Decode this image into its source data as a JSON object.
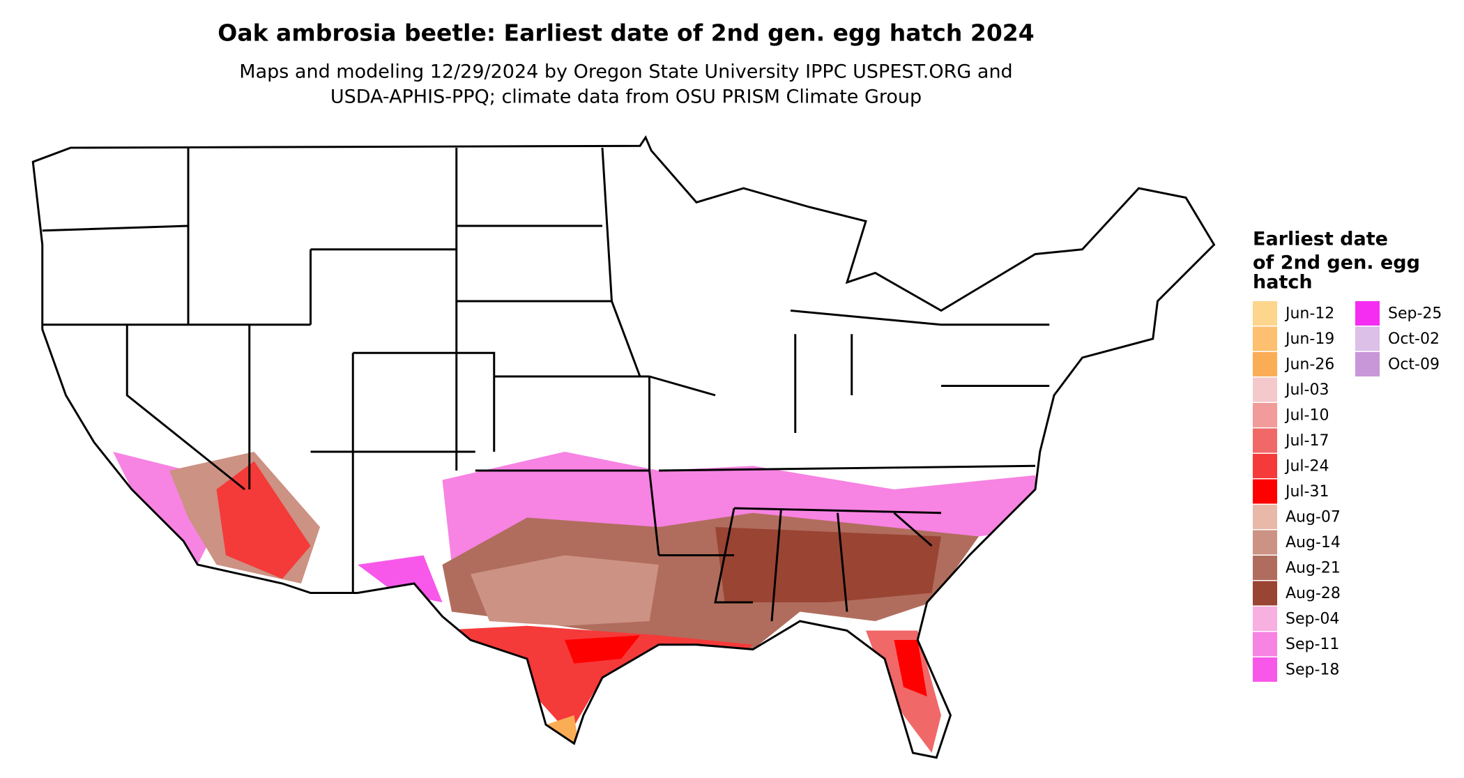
{
  "title": "Oak ambrosia beetle: Earliest date of 2nd gen. egg hatch 2024",
  "subtitle": [
    "Maps and modeling 12/29/2024 by Oregon State University IPPC USPEST.ORG and",
    "USDA-APHIS-PPQ; climate data from OSU PRISM Climate Group"
  ],
  "legend": {
    "title": [
      "Earliest date",
      "of 2nd gen. egg",
      "hatch"
    ],
    "items": [
      {
        "label": "Jun-12",
        "color": "#fdd58c"
      },
      {
        "label": "Jun-19",
        "color": "#fdc070"
      },
      {
        "label": "Jun-26",
        "color": "#fbad55"
      },
      {
        "label": "Jul-03",
        "color": "#f4c9cb"
      },
      {
        "label": "Jul-10",
        "color": "#f19b9a"
      },
      {
        "label": "Jul-17",
        "color": "#f06868"
      },
      {
        "label": "Jul-24",
        "color": "#f53a3a"
      },
      {
        "label": "Jul-31",
        "color": "#ff0000"
      },
      {
        "label": "Aug-07",
        "color": "#e8b8a8"
      },
      {
        "label": "Aug-14",
        "color": "#cc9283"
      },
      {
        "label": "Aug-21",
        "color": "#b06d5d"
      },
      {
        "label": "Aug-28",
        "color": "#9a4434"
      },
      {
        "label": "Sep-04",
        "color": "#f8b0e0"
      },
      {
        "label": "Sep-11",
        "color": "#f783e2"
      },
      {
        "label": "Sep-18",
        "color": "#f758ea"
      },
      {
        "label": "Sep-25",
        "color": "#f52cf2"
      },
      {
        "label": "Oct-02",
        "color": "#dcc0e8"
      },
      {
        "label": "Oct-09",
        "color": "#c897d8"
      }
    ]
  }
}
